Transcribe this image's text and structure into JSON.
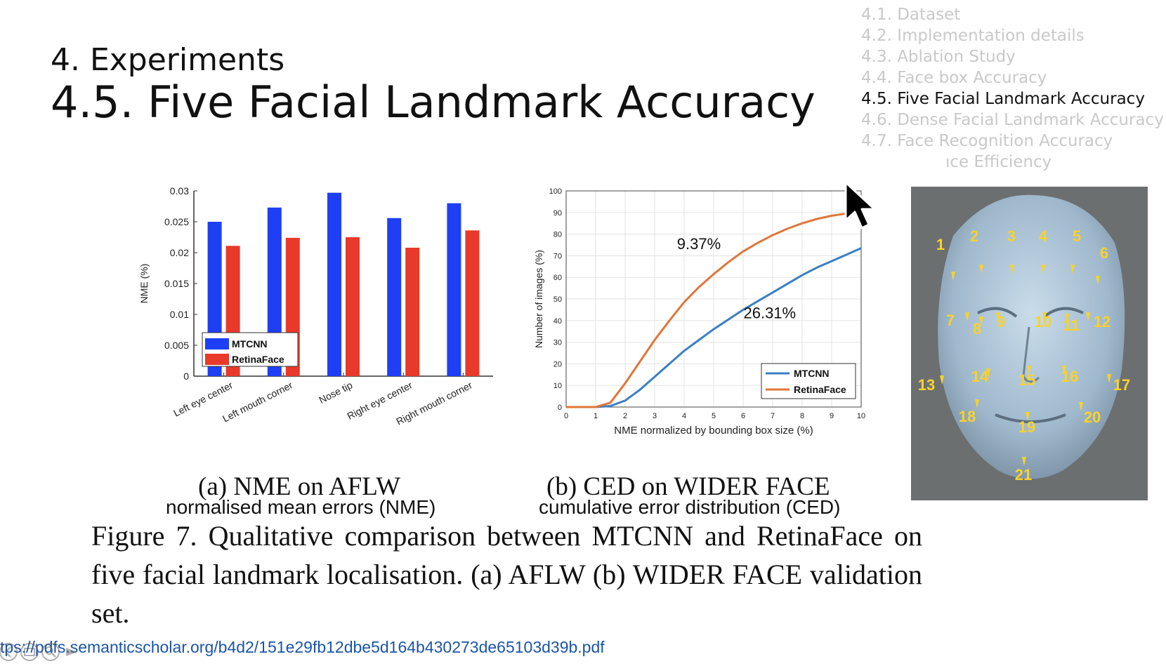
{
  "slide": {
    "section": "4. Experiments",
    "title": "4.5. Five Facial Landmark Accuracy"
  },
  "toc": {
    "items": [
      {
        "label": "4.1. Dataset",
        "state": "inactive"
      },
      {
        "label": "4.2. Implementation details",
        "state": "inactive"
      },
      {
        "label": "4.3. Ablation Study",
        "state": "inactive"
      },
      {
        "label": "4.4. Face box Accuracy",
        "state": "inactive"
      },
      {
        "label": "4.5. Five Facial Landmark Accuracy",
        "state": "active"
      },
      {
        "label": "4.6. Dense Facial Landmark Accuracy",
        "state": "inactive"
      },
      {
        "label": "4.7. Face Recognition Accuracy",
        "state": "inactive"
      },
      {
        "label": "ıce Efficiency",
        "state": "partial"
      }
    ]
  },
  "chart_data": [
    {
      "type": "bar",
      "categories": [
        "Left eye center",
        "Left mouth corner",
        "Nose tip",
        "Right eye center",
        "Right mouth corner"
      ],
      "series": [
        {
          "name": "MTCNN",
          "values": [
            0.025,
            0.0273,
            0.0297,
            0.0256,
            0.028
          ]
        },
        {
          "name": "RetinaFace",
          "values": [
            0.0211,
            0.0224,
            0.0225,
            0.0208,
            0.0236
          ]
        }
      ],
      "ylabel": "NME (%)",
      "ylim": [
        0,
        0.03
      ],
      "yticks": [
        "0",
        "0.005",
        "0.01",
        "0.015",
        "0.02",
        "0.025",
        "0.03"
      ],
      "legend": "bottom-left",
      "colors": {
        "MTCNN": "#1f3ff5",
        "RetinaFace": "#e8392a"
      }
    },
    {
      "type": "line",
      "xlabel": "NME normalized by bounding box size (%)",
      "ylabel": "Number of images (%)",
      "xlim": [
        0,
        10
      ],
      "ylim": [
        0,
        100
      ],
      "xticks": [
        "0",
        "1",
        "2",
        "3",
        "4",
        "5",
        "6",
        "7",
        "8",
        "9",
        "10"
      ],
      "yticks": [
        "0",
        "10",
        "20",
        "30",
        "40",
        "50",
        "60",
        "70",
        "80",
        "90",
        "100"
      ],
      "grid": true,
      "legend": "bottom-right",
      "series": [
        {
          "name": "MTCNN",
          "color": "#3b7fc4",
          "x": [
            0,
            1,
            1.5,
            2,
            2.5,
            3,
            3.5,
            4,
            4.5,
            5,
            5.5,
            6,
            6.5,
            7,
            7.5,
            8,
            8.5,
            9,
            9.5,
            10
          ],
          "y": [
            0,
            0,
            0.5,
            3,
            8,
            14,
            20,
            26,
            31,
            36,
            40.5,
            45,
            49,
            53,
            57,
            61,
            64.5,
            67.5,
            70.5,
            73.5
          ]
        },
        {
          "name": "RetinaFace",
          "color": "#e0763a",
          "x": [
            0,
            1,
            1.5,
            2,
            2.5,
            3,
            3.5,
            4,
            4.5,
            5,
            5.5,
            6,
            6.5,
            7,
            7.5,
            8,
            8.5,
            9,
            9.5,
            10
          ],
          "y": [
            0,
            0,
            2,
            11,
            21,
            31,
            40,
            48.5,
            55.5,
            61.5,
            67,
            72,
            76,
            79.5,
            82.5,
            85,
            87,
            88.5,
            89.5,
            90
          ]
        }
      ],
      "annotations": [
        {
          "text": "9.37%",
          "x": 4.5,
          "y": 73
        },
        {
          "text": "26.31%",
          "x": 6.9,
          "y": 41
        }
      ]
    }
  ],
  "face_landmarks": {
    "labels": [
      "1",
      "2",
      "3",
      "4",
      "5",
      "6",
      "7",
      "8",
      "9",
      "10",
      "11",
      "12",
      "13",
      "14",
      "15",
      "16",
      "17",
      "18",
      "19",
      "20",
      "21"
    ],
    "marker_color": "#f7d22e"
  },
  "subcaptions": {
    "a": "(a) NME on AFLW",
    "b": "(b) CED on WIDER FACE",
    "a_note": "normalised mean errors (NME)",
    "b_note": "cumulative error distribution (CED)"
  },
  "figure_caption": "Figure 7. Qualitative comparison between MTCNN and RetinaFace on five facial landmark localisation. (a) AFLW (b) WIDER FACE validation set.",
  "footer": {
    "url": "tps://pdfs.semanticscholar.org/b4d2/151e29fb12dbe5d164b430273de65103d39b.pdf"
  }
}
